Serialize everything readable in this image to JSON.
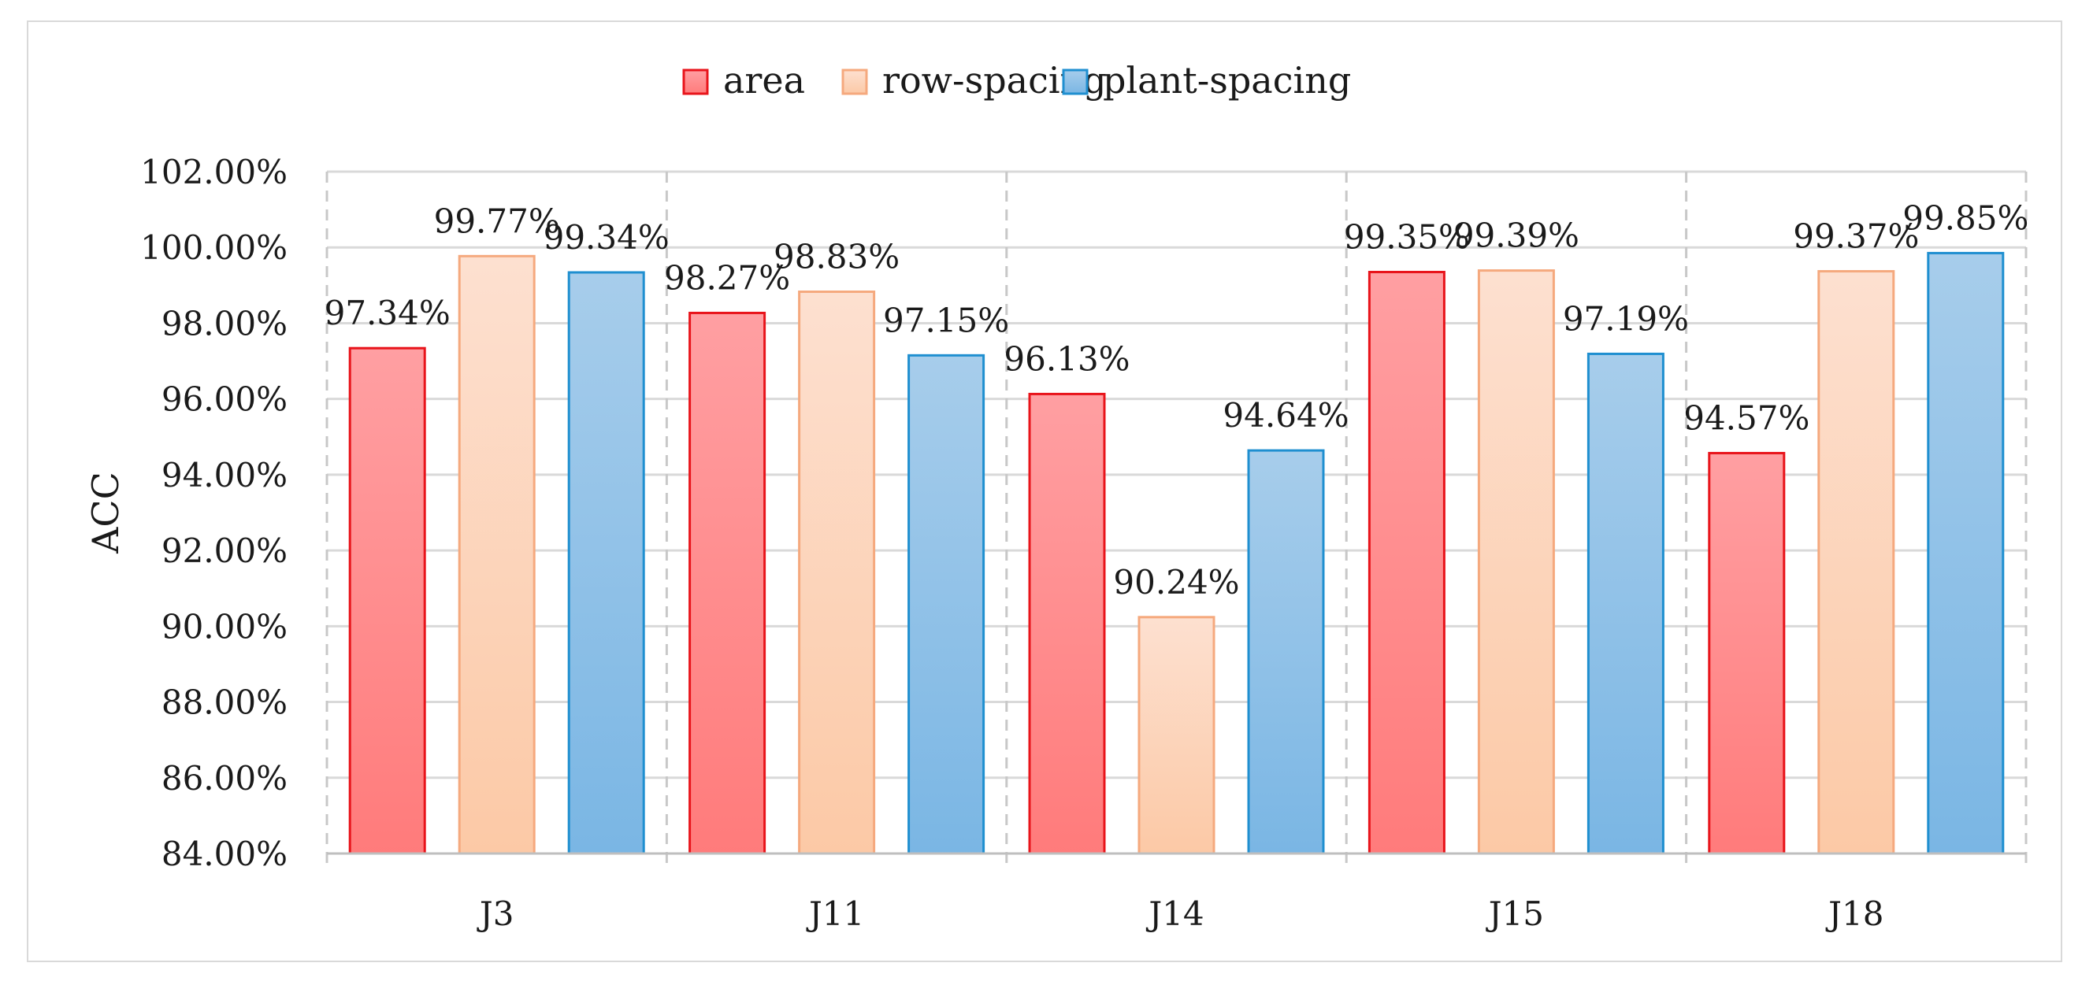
{
  "chart_data": {
    "type": "bar",
    "title": "",
    "xlabel": "",
    "ylabel": "ACC",
    "ylim": [
      84,
      102
    ],
    "yticks": [
      84,
      86,
      88,
      90,
      92,
      94,
      96,
      98,
      100,
      102
    ],
    "ytick_labels": [
      "84.00%",
      "86.00%",
      "88.00%",
      "90.00%",
      "92.00%",
      "94.00%",
      "96.00%",
      "98.00%",
      "100.00%",
      "102.00%"
    ],
    "categories": [
      "J3",
      "J11",
      "J14",
      "J15",
      "J18"
    ],
    "series": [
      {
        "name": "area",
        "values": [
          97.34,
          98.27,
          96.13,
          99.35,
          94.57
        ],
        "labels": [
          "97.34%",
          "98.27%",
          "96.13%",
          "99.35%",
          "94.57%"
        ],
        "color_top": "#ff9fa2",
        "color_bottom": "#ff7b7b",
        "stroke": "#e8141b"
      },
      {
        "name": "row-spacing",
        "values": [
          99.77,
          98.83,
          90.24,
          99.39,
          99.37
        ],
        "labels": [
          "99.77%",
          "98.83%",
          "90.24%",
          "99.39%",
          "99.37%"
        ],
        "color_top": "#fde0d0",
        "color_bottom": "#fcc9a6",
        "stroke": "#f5a97e"
      },
      {
        "name": "plant-spacing",
        "values": [
          99.34,
          97.15,
          94.64,
          97.19,
          99.85
        ],
        "labels": [
          "99.34%",
          "97.15%",
          "94.64%",
          "97.19%",
          "99.85%"
        ],
        "color_top": "#a7cdeb",
        "color_bottom": "#7ab6e4",
        "stroke": "#1f8fd0"
      }
    ],
    "legend_position": "top-center",
    "grid": "horizontal solid, vertical dashed category separators"
  }
}
